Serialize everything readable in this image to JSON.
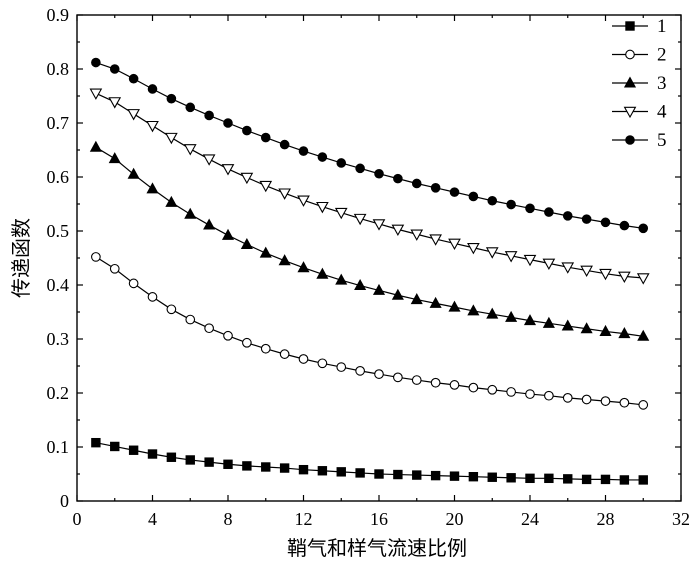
{
  "chart_data": {
    "type": "line",
    "xlabel": "鞘气和样气流速比例",
    "ylabel": "传递函数",
    "xlim": [
      0,
      32
    ],
    "ylim": [
      0,
      0.9
    ],
    "x_ticks": [
      "0",
      "4",
      "8",
      "12",
      "16",
      "20",
      "24",
      "28",
      "32"
    ],
    "y_ticks": [
      "0",
      "0.1",
      "0.2",
      "0.3",
      "0.4",
      "0.5",
      "0.6",
      "0.7",
      "0.8",
      "0.9"
    ],
    "legend_position": "top-right",
    "x": [
      1,
      2,
      3,
      4,
      5,
      6,
      7,
      8,
      9,
      10,
      11,
      12,
      13,
      14,
      15,
      16,
      17,
      18,
      19,
      20,
      21,
      22,
      23,
      24,
      25,
      26,
      27,
      28,
      29,
      30
    ],
    "series": [
      {
        "name": "1",
        "marker": "filled-square",
        "values": [
          0.108,
          0.101,
          0.094,
          0.087,
          0.081,
          0.076,
          0.072,
          0.068,
          0.065,
          0.063,
          0.061,
          0.058,
          0.056,
          0.054,
          0.052,
          0.05,
          0.049,
          0.048,
          0.047,
          0.046,
          0.045,
          0.044,
          0.043,
          0.042,
          0.042,
          0.041,
          0.04,
          0.04,
          0.039,
          0.039
        ]
      },
      {
        "name": "2",
        "marker": "open-circle",
        "values": [
          0.452,
          0.43,
          0.403,
          0.378,
          0.355,
          0.336,
          0.32,
          0.306,
          0.293,
          0.282,
          0.272,
          0.263,
          0.255,
          0.248,
          0.241,
          0.235,
          0.229,
          0.224,
          0.219,
          0.215,
          0.21,
          0.206,
          0.202,
          0.198,
          0.195,
          0.191,
          0.188,
          0.185,
          0.182,
          0.178
        ]
      },
      {
        "name": "3",
        "marker": "filled-triangle-up",
        "values": [
          0.655,
          0.634,
          0.605,
          0.578,
          0.553,
          0.531,
          0.511,
          0.492,
          0.475,
          0.459,
          0.445,
          0.432,
          0.42,
          0.409,
          0.399,
          0.39,
          0.381,
          0.373,
          0.366,
          0.359,
          0.352,
          0.346,
          0.34,
          0.334,
          0.329,
          0.324,
          0.319,
          0.314,
          0.31,
          0.305
        ]
      },
      {
        "name": "4",
        "marker": "open-triangle-down",
        "values": [
          0.755,
          0.739,
          0.717,
          0.695,
          0.673,
          0.652,
          0.633,
          0.615,
          0.599,
          0.584,
          0.57,
          0.557,
          0.545,
          0.534,
          0.523,
          0.513,
          0.503,
          0.494,
          0.485,
          0.477,
          0.469,
          0.461,
          0.454,
          0.447,
          0.44,
          0.433,
          0.427,
          0.421,
          0.416,
          0.413
        ]
      },
      {
        "name": "5",
        "marker": "filled-circle",
        "values": [
          0.812,
          0.8,
          0.782,
          0.763,
          0.745,
          0.729,
          0.714,
          0.7,
          0.686,
          0.673,
          0.66,
          0.648,
          0.637,
          0.626,
          0.616,
          0.606,
          0.597,
          0.588,
          0.58,
          0.572,
          0.564,
          0.556,
          0.549,
          0.542,
          0.535,
          0.528,
          0.522,
          0.516,
          0.51,
          0.505
        ]
      }
    ]
  }
}
